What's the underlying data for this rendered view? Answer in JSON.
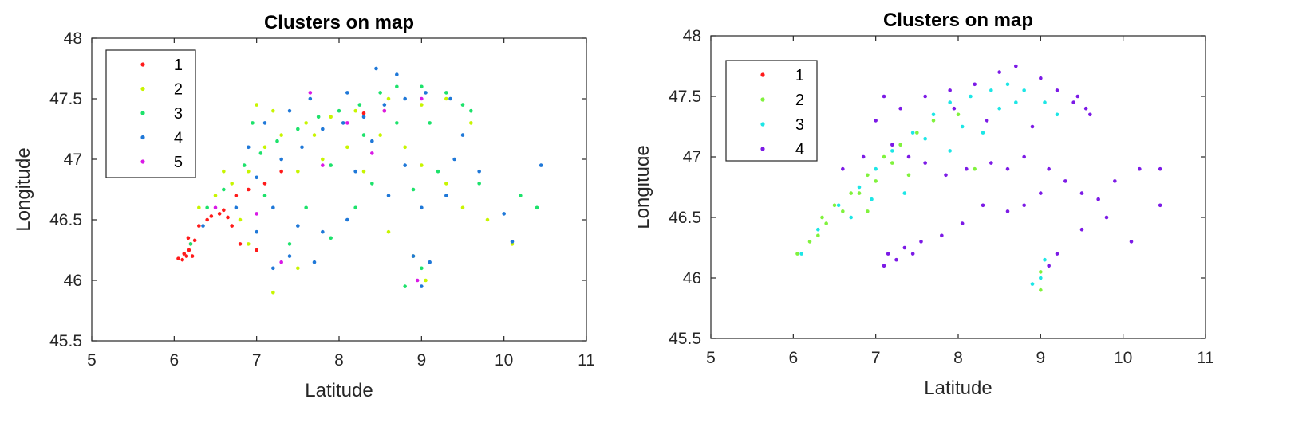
{
  "chart_data": [
    {
      "type": "scatter",
      "title": "Clusters on map",
      "xlabel": "Latitude",
      "ylabel": "Longitude",
      "xlim": [
        5,
        11
      ],
      "ylim": [
        45.5,
        48
      ],
      "xticks": [
        "5",
        "6",
        "7",
        "8",
        "9",
        "10",
        "11"
      ],
      "yticks": [
        "45.5",
        "46",
        "46.5",
        "47",
        "47.5",
        "48"
      ],
      "grid": false,
      "legend_position": "top-left",
      "series": [
        {
          "name": "1",
          "color": "#ff1a1a",
          "points": [
            [
              6.05,
              46.18
            ],
            [
              6.12,
              46.22
            ],
            [
              6.15,
              46.2
            ],
            [
              6.18,
              46.25
            ],
            [
              6.2,
              46.3
            ],
            [
              6.1,
              46.17
            ],
            [
              6.22,
              46.2
            ],
            [
              6.25,
              46.33
            ],
            [
              6.3,
              46.45
            ],
            [
              6.45,
              46.53
            ],
            [
              6.55,
              46.55
            ],
            [
              6.65,
              46.52
            ],
            [
              6.7,
              46.45
            ],
            [
              6.4,
              46.5
            ],
            [
              6.6,
              46.58
            ],
            [
              6.75,
              46.7
            ],
            [
              6.9,
              46.75
            ],
            [
              7.1,
              46.8
            ],
            [
              7.3,
              46.9
            ],
            [
              8.3,
              47.38
            ],
            [
              8.55,
              47.4
            ],
            [
              6.8,
              46.3
            ],
            [
              7.0,
              46.25
            ],
            [
              6.17,
              46.35
            ]
          ]
        },
        {
          "name": "2",
          "color": "#c8f500",
          "points": [
            [
              6.3,
              46.6
            ],
            [
              6.5,
              46.7
            ],
            [
              6.7,
              46.8
            ],
            [
              6.9,
              46.9
            ],
            [
              7.1,
              47.1
            ],
            [
              7.3,
              47.2
            ],
            [
              7.6,
              47.3
            ],
            [
              7.9,
              47.35
            ],
            [
              8.2,
              47.4
            ],
            [
              8.6,
              47.5
            ],
            [
              9.0,
              47.45
            ],
            [
              9.3,
              47.5
            ],
            [
              7.0,
              47.45
            ],
            [
              7.2,
              47.4
            ],
            [
              6.8,
              46.5
            ],
            [
              7.5,
              46.9
            ],
            [
              7.8,
              47.0
            ],
            [
              8.1,
              47.1
            ],
            [
              8.5,
              47.2
            ],
            [
              8.8,
              47.1
            ],
            [
              9.0,
              46.95
            ],
            [
              9.3,
              46.8
            ],
            [
              9.5,
              46.6
            ],
            [
              9.8,
              46.5
            ],
            [
              10.1,
              46.3
            ],
            [
              8.9,
              46.2
            ],
            [
              9.05,
              46.0
            ],
            [
              7.2,
              45.9
            ],
            [
              7.5,
              46.1
            ],
            [
              6.9,
              46.3
            ],
            [
              8.6,
              46.4
            ],
            [
              7.7,
              47.2
            ],
            [
              8.3,
              46.9
            ],
            [
              9.6,
              47.3
            ],
            [
              6.6,
              46.9
            ]
          ]
        },
        {
          "name": "3",
          "color": "#1de26b",
          "points": [
            [
              6.2,
              46.3
            ],
            [
              6.4,
              46.6
            ],
            [
              6.6,
              46.75
            ],
            [
              6.85,
              46.95
            ],
            [
              7.05,
              47.05
            ],
            [
              7.25,
              47.15
            ],
            [
              7.5,
              47.25
            ],
            [
              7.75,
              47.35
            ],
            [
              8.0,
              47.4
            ],
            [
              8.25,
              47.45
            ],
            [
              8.5,
              47.55
            ],
            [
              8.7,
              47.6
            ],
            [
              9.0,
              47.6
            ],
            [
              9.3,
              47.55
            ],
            [
              9.5,
              47.45
            ],
            [
              9.6,
              47.4
            ],
            [
              8.3,
              47.2
            ],
            [
              8.7,
              47.3
            ],
            [
              9.1,
              47.3
            ],
            [
              7.9,
              46.95
            ],
            [
              8.4,
              46.8
            ],
            [
              8.9,
              46.75
            ],
            [
              9.2,
              46.9
            ],
            [
              9.7,
              46.8
            ],
            [
              10.2,
              46.7
            ],
            [
              10.4,
              46.6
            ],
            [
              7.4,
              46.3
            ],
            [
              7.9,
              46.35
            ],
            [
              9.0,
              46.1
            ],
            [
              8.8,
              45.95
            ],
            [
              7.1,
              46.7
            ],
            [
              7.6,
              46.6
            ],
            [
              8.2,
              46.6
            ],
            [
              6.95,
              47.3
            ]
          ]
        },
        {
          "name": "4",
          "color": "#1f78d8",
          "points": [
            [
              6.35,
              46.45
            ],
            [
              6.75,
              46.6
            ],
            [
              7.0,
              46.85
            ],
            [
              7.3,
              47.0
            ],
            [
              7.55,
              47.1
            ],
            [
              7.8,
              47.25
            ],
            [
              8.05,
              47.3
            ],
            [
              8.3,
              47.35
            ],
            [
              8.55,
              47.45
            ],
            [
              8.8,
              47.5
            ],
            [
              9.05,
              47.55
            ],
            [
              9.35,
              47.5
            ],
            [
              8.45,
              47.75
            ],
            [
              8.7,
              47.7
            ],
            [
              7.65,
              47.5
            ],
            [
              8.1,
              47.55
            ],
            [
              7.4,
              47.4
            ],
            [
              7.2,
              46.6
            ],
            [
              7.5,
              46.45
            ],
            [
              7.8,
              46.4
            ],
            [
              8.1,
              46.5
            ],
            [
              8.6,
              46.7
            ],
            [
              9.0,
              46.6
            ],
            [
              9.3,
              46.7
            ],
            [
              9.7,
              46.9
            ],
            [
              10.0,
              46.55
            ],
            [
              10.45,
              46.95
            ],
            [
              10.1,
              46.32
            ],
            [
              7.2,
              46.1
            ],
            [
              7.4,
              46.2
            ],
            [
              7.7,
              46.15
            ],
            [
              8.9,
              46.2
            ],
            [
              9.1,
              46.15
            ],
            [
              9.0,
              45.95
            ],
            [
              7.0,
              46.4
            ],
            [
              8.2,
              46.9
            ],
            [
              8.8,
              46.95
            ],
            [
              9.4,
              47.0
            ],
            [
              6.9,
              47.1
            ],
            [
              7.1,
              47.3
            ],
            [
              8.4,
              47.15
            ],
            [
              9.5,
              47.2
            ]
          ]
        },
        {
          "name": "5",
          "color": "#d919e6",
          "points": [
            [
              7.65,
              47.55
            ],
            [
              8.55,
              47.4
            ],
            [
              7.0,
              46.55
            ],
            [
              7.3,
              46.15
            ],
            [
              8.95,
              46.0
            ],
            [
              6.5,
              46.6
            ],
            [
              8.1,
              47.3
            ],
            [
              9.0,
              47.5
            ],
            [
              7.8,
              46.95
            ],
            [
              8.4,
              47.05
            ]
          ]
        }
      ]
    },
    {
      "type": "scatter",
      "title": "Clusters on map",
      "xlabel": "Latitude",
      "ylabel": "Longitude",
      "xlim": [
        5,
        11
      ],
      "ylim": [
        45.5,
        48
      ],
      "xticks": [
        "5",
        "6",
        "7",
        "8",
        "9",
        "10",
        "11"
      ],
      "yticks": [
        "45.5",
        "46",
        "46.5",
        "47",
        "47.5",
        "48"
      ],
      "grid": false,
      "legend_position": "top-left",
      "series": [
        {
          "name": "1",
          "color": "#ff1a1a",
          "points": []
        },
        {
          "name": "2",
          "color": "#80f23c",
          "points": [
            [
              6.05,
              46.2
            ],
            [
              6.2,
              46.3
            ],
            [
              6.35,
              46.5
            ],
            [
              6.5,
              46.6
            ],
            [
              6.7,
              46.7
            ],
            [
              6.9,
              46.85
            ],
            [
              7.1,
              47.0
            ],
            [
              7.3,
              47.1
            ],
            [
              6.6,
              46.55
            ],
            [
              6.8,
              46.7
            ],
            [
              7.0,
              46.8
            ],
            [
              7.2,
              46.95
            ],
            [
              6.4,
              46.45
            ],
            [
              9.0,
              45.9
            ],
            [
              9.0,
              46.05
            ],
            [
              7.5,
              47.2
            ],
            [
              7.7,
              47.3
            ],
            [
              8.0,
              47.35
            ],
            [
              8.2,
              46.9
            ],
            [
              7.4,
              46.85
            ],
            [
              6.9,
              46.55
            ],
            [
              6.3,
              46.35
            ]
          ]
        },
        {
          "name": "3",
          "color": "#1de6e6",
          "points": [
            [
              6.1,
              46.2
            ],
            [
              6.3,
              46.4
            ],
            [
              6.55,
              46.6
            ],
            [
              6.8,
              46.75
            ],
            [
              7.0,
              46.9
            ],
            [
              7.2,
              47.05
            ],
            [
              7.45,
              47.2
            ],
            [
              7.7,
              47.35
            ],
            [
              7.9,
              47.45
            ],
            [
              8.15,
              47.5
            ],
            [
              8.4,
              47.55
            ],
            [
              8.6,
              47.6
            ],
            [
              8.8,
              47.55
            ],
            [
              9.05,
              47.45
            ],
            [
              9.2,
              47.35
            ],
            [
              8.3,
              47.2
            ],
            [
              8.5,
              47.4
            ],
            [
              8.7,
              47.45
            ],
            [
              7.6,
              47.15
            ],
            [
              7.9,
              47.05
            ],
            [
              6.95,
              46.65
            ],
            [
              6.7,
              46.5
            ],
            [
              9.0,
              46.0
            ],
            [
              8.9,
              45.95
            ],
            [
              9.05,
              46.15
            ],
            [
              7.35,
              46.7
            ],
            [
              8.05,
              47.25
            ]
          ]
        },
        {
          "name": "4",
          "color": "#7c1ae6",
          "points": [
            [
              7.1,
              47.5
            ],
            [
              7.3,
              47.4
            ],
            [
              7.6,
              47.5
            ],
            [
              7.9,
              47.55
            ],
            [
              8.2,
              47.6
            ],
            [
              8.5,
              47.7
            ],
            [
              8.7,
              47.75
            ],
            [
              9.0,
              47.65
            ],
            [
              9.2,
              47.55
            ],
            [
              9.4,
              47.45
            ],
            [
              9.55,
              47.4
            ],
            [
              9.6,
              47.35
            ],
            [
              7.0,
              47.3
            ],
            [
              7.2,
              47.1
            ],
            [
              7.4,
              47.0
            ],
            [
              7.6,
              46.95
            ],
            [
              7.85,
              46.85
            ],
            [
              8.1,
              46.9
            ],
            [
              8.4,
              46.95
            ],
            [
              8.6,
              46.9
            ],
            [
              8.8,
              47.0
            ],
            [
              9.1,
              46.9
            ],
            [
              9.3,
              46.8
            ],
            [
              9.5,
              46.7
            ],
            [
              9.7,
              46.65
            ],
            [
              9.9,
              46.8
            ],
            [
              10.2,
              46.9
            ],
            [
              10.45,
              46.9
            ],
            [
              10.45,
              46.6
            ],
            [
              10.1,
              46.3
            ],
            [
              9.8,
              46.5
            ],
            [
              9.5,
              46.4
            ],
            [
              7.15,
              46.2
            ],
            [
              7.35,
              46.25
            ],
            [
              7.55,
              46.3
            ],
            [
              7.8,
              46.35
            ],
            [
              8.05,
              46.45
            ],
            [
              7.25,
              46.15
            ],
            [
              7.45,
              46.2
            ],
            [
              7.1,
              46.1
            ],
            [
              8.3,
              46.6
            ],
            [
              8.6,
              46.55
            ],
            [
              8.8,
              46.6
            ],
            [
              9.0,
              46.7
            ],
            [
              9.2,
              46.2
            ],
            [
              9.1,
              46.1
            ],
            [
              6.6,
              46.9
            ],
            [
              6.85,
              47.0
            ],
            [
              7.95,
              47.4
            ],
            [
              8.35,
              47.3
            ],
            [
              8.9,
              47.25
            ],
            [
              9.45,
              47.5
            ]
          ]
        }
      ]
    }
  ]
}
